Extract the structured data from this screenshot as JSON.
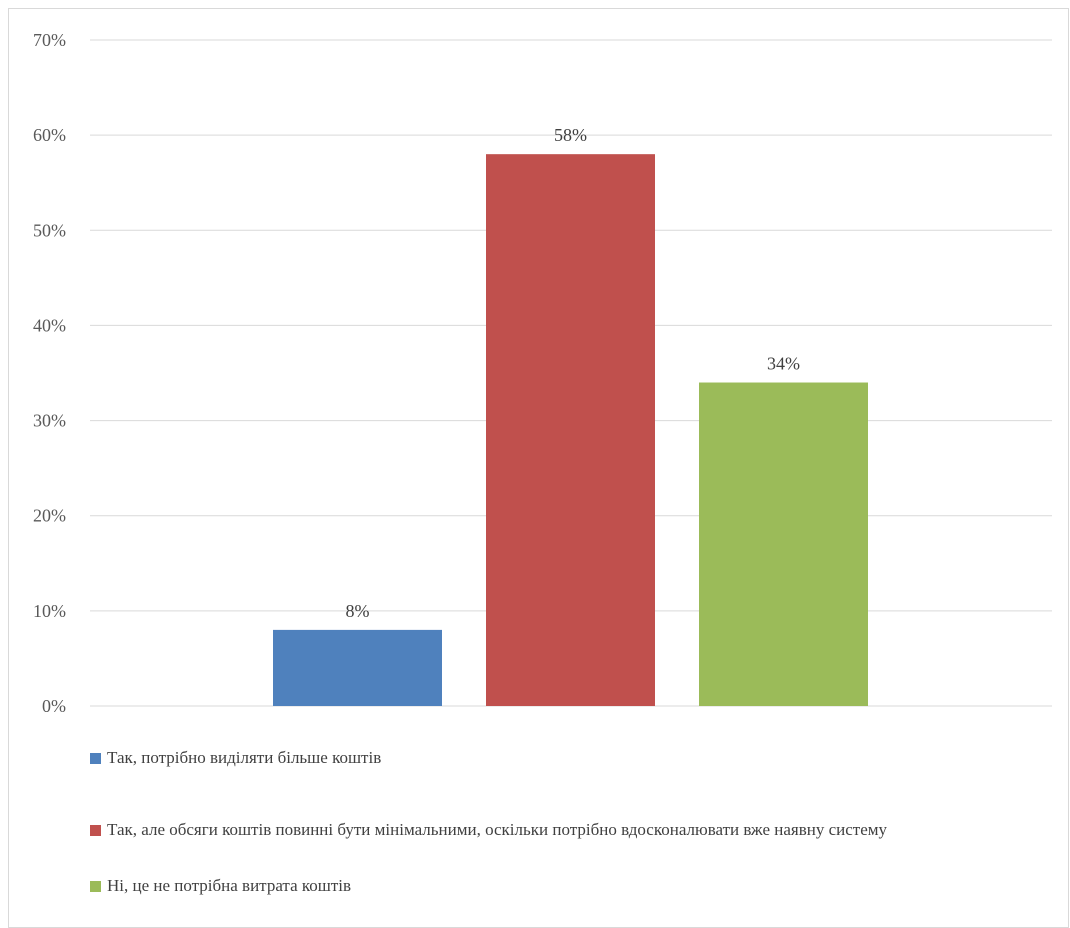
{
  "chart_data": {
    "type": "bar",
    "categories": [
      "Так, потрібно виділяти більше коштів",
      "Так, але обсяги коштів повинні бути мінімальними, оскільки потрібно вдосконалювати вже наявну систему",
      "Ні, це не потрібна витрата коштів"
    ],
    "values": [
      8,
      58,
      34
    ],
    "data_labels": [
      "8%",
      "58%",
      "34%"
    ],
    "colors": [
      "#4f81bd",
      "#c0504d",
      "#9bbb59"
    ],
    "ylim": [
      0,
      70
    ],
    "yticks": [
      0,
      10,
      20,
      30,
      40,
      50,
      60,
      70
    ],
    "ytick_labels": [
      "0%",
      "10%",
      "20%",
      "30%",
      "40%",
      "50%",
      "60%",
      "70%"
    ],
    "grid": true,
    "legend_placement": "bottom-left",
    "title": "",
    "xlabel": "",
    "ylabel": ""
  }
}
